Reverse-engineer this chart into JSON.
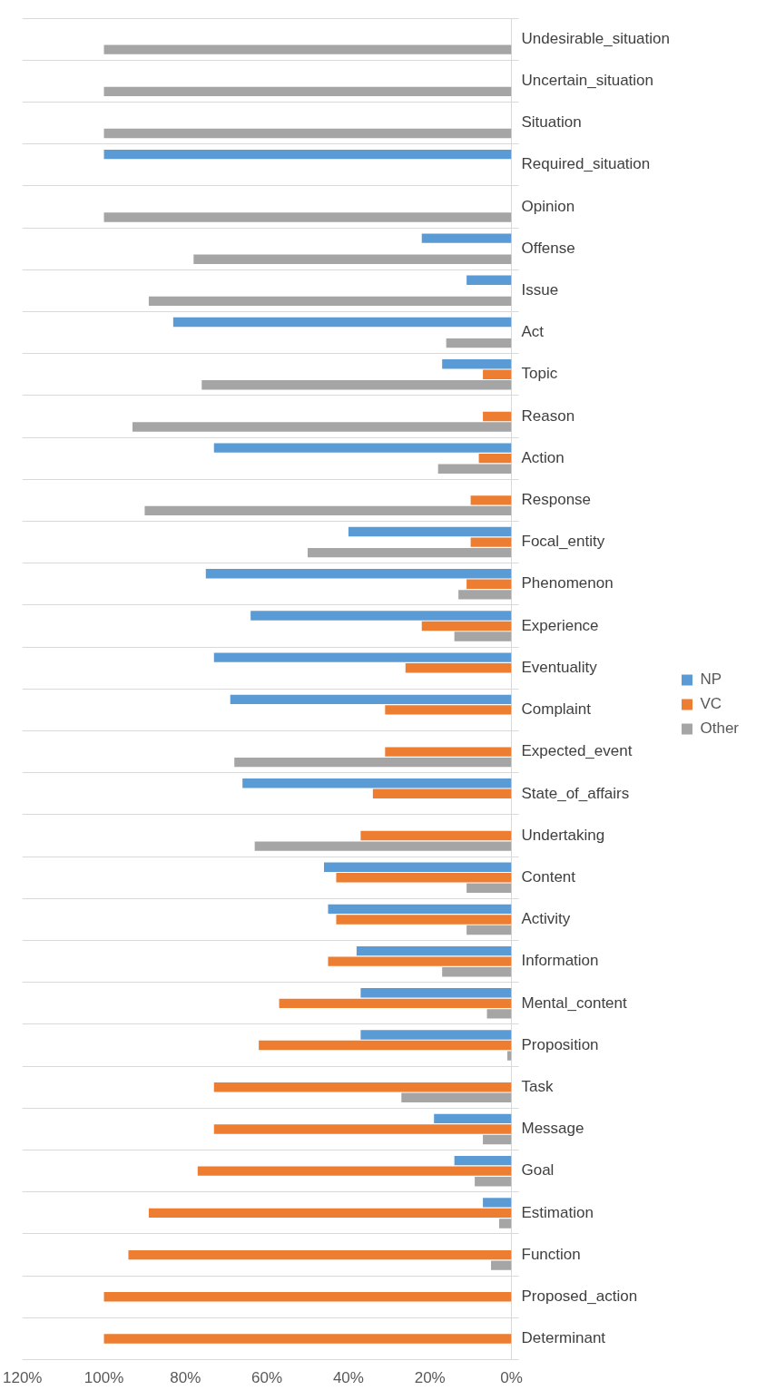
{
  "chart_data": {
    "type": "bar",
    "orientation": "horizontal",
    "categories": [
      "Undesirable_situation",
      "Uncertain_situation",
      "Situation",
      "Required_situation",
      "Opinion",
      "Offense",
      "Issue",
      "Act",
      "Topic",
      "Reason",
      "Action",
      "Response",
      "Focal_entity",
      "Phenomenon",
      "Experience",
      "Eventuality",
      "Complaint",
      "Expected_event",
      "State_of_affairs",
      "Undertaking",
      "Content",
      "Activity",
      "Information",
      "Mental_content",
      "Proposition",
      "Task",
      "Message",
      "Goal",
      "Estimation",
      "Function",
      "Proposed_action",
      "Determinant"
    ],
    "series": [
      {
        "name": "NP",
        "color": "#5b9bd5",
        "values": [
          null,
          null,
          null,
          100,
          null,
          22,
          11,
          83,
          17,
          null,
          73,
          null,
          40,
          75,
          64,
          73,
          69,
          null,
          66,
          null,
          46,
          45,
          38,
          37,
          37,
          null,
          19,
          14,
          7,
          null,
          null,
          null
        ]
      },
      {
        "name": "VC",
        "color": "#ed7d31",
        "values": [
          null,
          null,
          null,
          null,
          null,
          null,
          null,
          null,
          7,
          7,
          8,
          10,
          10,
          11,
          22,
          26,
          31,
          31,
          34,
          37,
          43,
          43,
          45,
          57,
          62,
          73,
          73,
          77,
          89,
          94,
          100,
          100
        ]
      },
      {
        "name": "Other",
        "color": "#a5a5a5",
        "values": [
          100,
          100,
          100,
          null,
          100,
          78,
          89,
          16,
          76,
          93,
          18,
          90,
          50,
          13,
          14,
          null,
          null,
          68,
          null,
          63,
          11,
          11,
          17,
          6,
          1,
          27,
          7,
          9,
          3,
          5,
          null,
          null
        ]
      }
    ],
    "xlim": [
      120,
      0
    ],
    "xticks": [
      {
        "value": 120,
        "label": "120%"
      },
      {
        "value": 100,
        "label": "100%"
      },
      {
        "value": 80,
        "label": "80%"
      },
      {
        "value": 60,
        "label": "60%"
      },
      {
        "value": 40,
        "label": "40%"
      },
      {
        "value": 20,
        "label": "20%"
      },
      {
        "value": 0,
        "label": "0%"
      }
    ],
    "grid": "y",
    "legend": "right"
  }
}
